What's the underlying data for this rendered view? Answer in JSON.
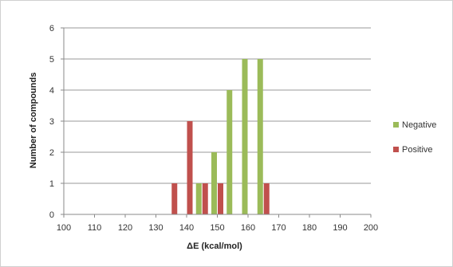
{
  "chart_data": {
    "type": "bar",
    "xlabel": "ΔE (kcal/mol)",
    "ylabel": "Number of compounds",
    "ylim": [
      0,
      6
    ],
    "yticks": [
      "0",
      "1",
      "2",
      "3",
      "4",
      "5",
      "6"
    ],
    "xlim": [
      100,
      200
    ],
    "xticks": [
      "100",
      "110",
      "120",
      "130",
      "140",
      "150",
      "160",
      "170",
      "180",
      "190",
      "200"
    ],
    "grid": "horizontal",
    "legend_position": "right",
    "series": [
      {
        "name": "Negative",
        "color": "#9bbb59",
        "points": [
          {
            "x": 145,
            "y": 1
          },
          {
            "x": 150,
            "y": 2
          },
          {
            "x": 155,
            "y": 4
          },
          {
            "x": 160,
            "y": 5
          },
          {
            "x": 165,
            "y": 5
          }
        ]
      },
      {
        "name": "Positive",
        "color": "#c0504d",
        "points": [
          {
            "x": 135,
            "y": 1
          },
          {
            "x": 140,
            "y": 3
          },
          {
            "x": 145,
            "y": 1
          },
          {
            "x": 150,
            "y": 1
          },
          {
            "x": 165,
            "y": 1
          }
        ]
      }
    ]
  }
}
